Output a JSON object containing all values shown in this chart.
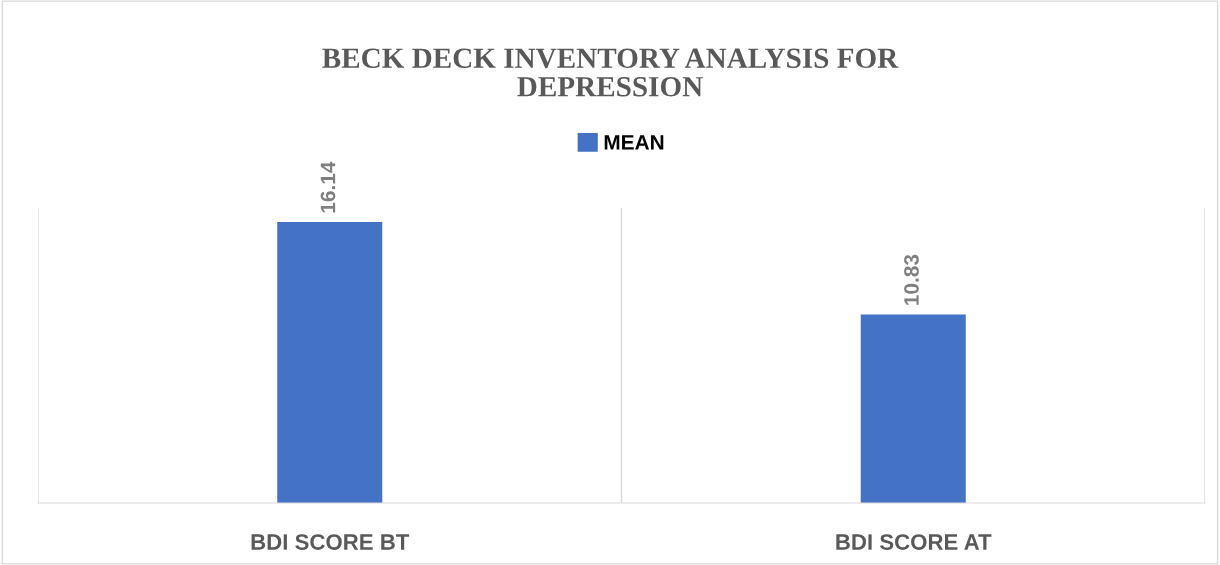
{
  "chart_data": {
    "type": "bar",
    "title": "BECK DECK INVENTORY ANALYSIS FOR\nDEPRESSION",
    "categories": [
      "BDI SCORE BT",
      "BDI SCORE AT"
    ],
    "series": [
      {
        "name": "MEAN",
        "color": "#4472c4",
        "values": [
          16.14,
          10.83
        ]
      }
    ],
    "data_labels": true,
    "legend": "top",
    "grid": "x"
  }
}
